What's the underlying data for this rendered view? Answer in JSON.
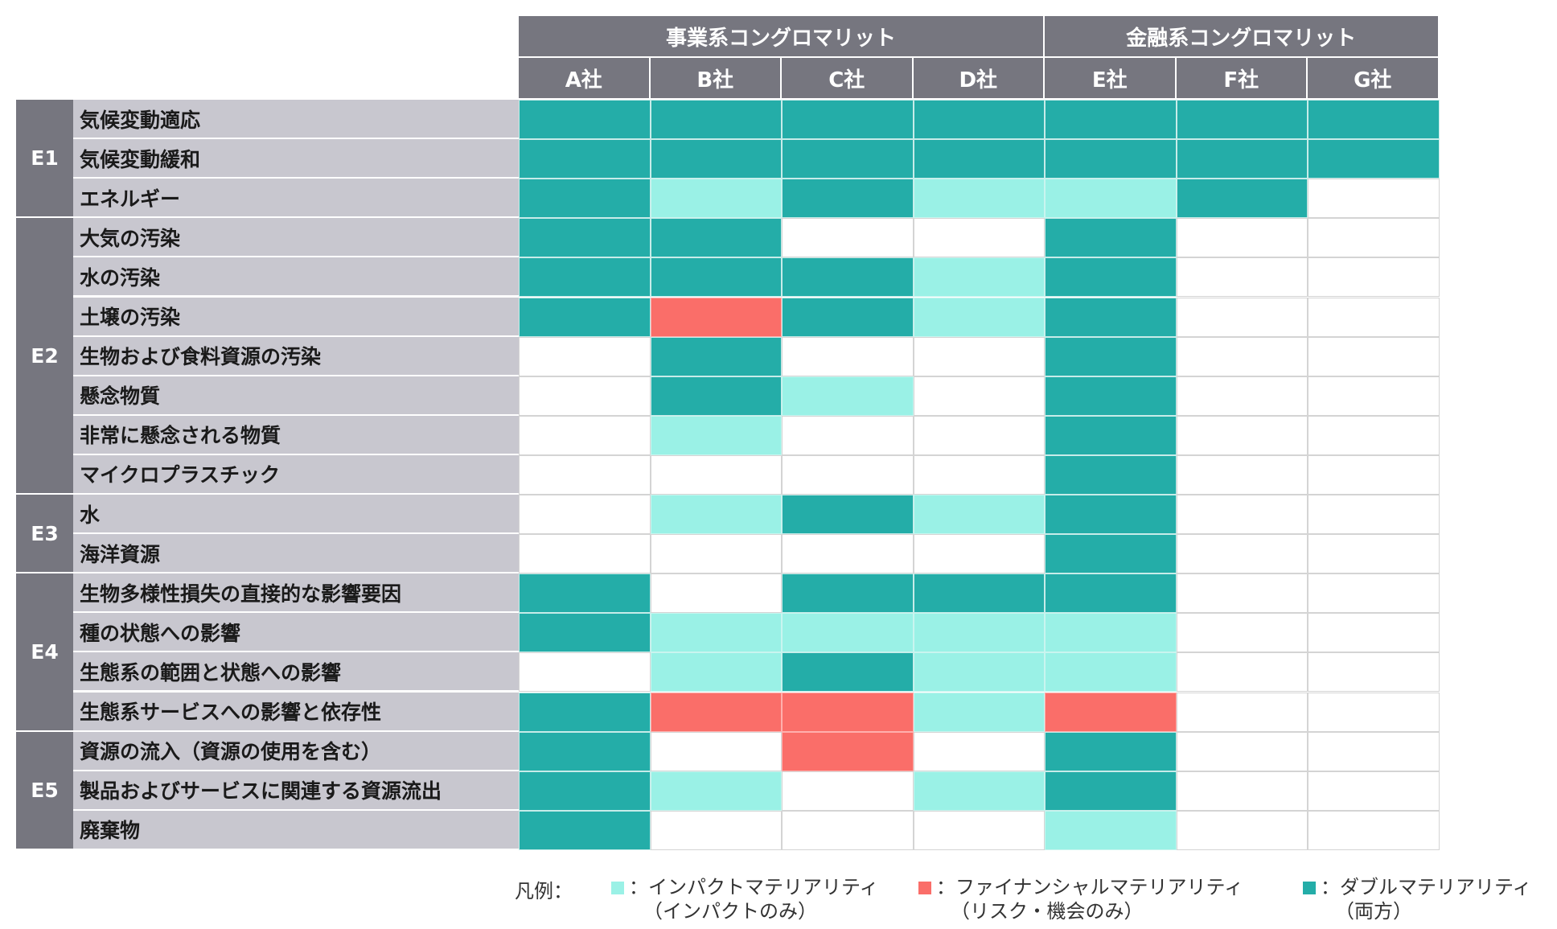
{
  "chart_data": {
    "type": "table",
    "column_groups": [
      {
        "label": "事業系コングロマリット",
        "span": 4
      },
      {
        "label": "金融系コングロマリット",
        "span": 3
      }
    ],
    "columns": [
      "A社",
      "B社",
      "C社",
      "D社",
      "E社",
      "F社",
      "G社"
    ],
    "row_groups": [
      {
        "label": "E1",
        "rows": [
          {
            "label": "気候変動適応",
            "values": [
              3,
              3,
              3,
              3,
              3,
              3,
              3
            ]
          },
          {
            "label": "気候変動緩和",
            "values": [
              3,
              3,
              3,
              3,
              3,
              3,
              3
            ]
          },
          {
            "label": "エネルギー",
            "values": [
              3,
              1,
              3,
              1,
              1,
              3,
              0
            ]
          }
        ]
      },
      {
        "label": "E2",
        "rows": [
          {
            "label": "大気の汚染",
            "values": [
              3,
              3,
              0,
              0,
              3,
              0,
              0
            ]
          },
          {
            "label": "水の汚染",
            "values": [
              3,
              3,
              3,
              1,
              3,
              0,
              0
            ]
          },
          {
            "label": "土壌の汚染",
            "values": [
              3,
              2,
              3,
              1,
              3,
              0,
              0
            ]
          },
          {
            "label": "生物および食料資源の汚染",
            "values": [
              0,
              3,
              0,
              0,
              3,
              0,
              0
            ]
          },
          {
            "label": "懸念物質",
            "values": [
              0,
              3,
              1,
              0,
              3,
              0,
              0
            ]
          },
          {
            "label": "非常に懸念される物質",
            "values": [
              0,
              1,
              0,
              0,
              3,
              0,
              0
            ]
          },
          {
            "label": "マイクロプラスチック",
            "values": [
              0,
              0,
              0,
              0,
              3,
              0,
              0
            ]
          }
        ]
      },
      {
        "label": "E3",
        "rows": [
          {
            "label": "水",
            "values": [
              0,
              1,
              3,
              1,
              3,
              0,
              0
            ]
          },
          {
            "label": "海洋資源",
            "values": [
              0,
              0,
              0,
              0,
              3,
              0,
              0
            ]
          }
        ]
      },
      {
        "label": "E4",
        "rows": [
          {
            "label": "生物多様性損失の直接的な影響要因",
            "values": [
              3,
              0,
              3,
              3,
              3,
              0,
              0
            ]
          },
          {
            "label": "種の状態への影響",
            "values": [
              3,
              1,
              1,
              1,
              1,
              0,
              0
            ]
          },
          {
            "label": "生態系の範囲と状態への影響",
            "values": [
              0,
              1,
              3,
              1,
              1,
              0,
              0
            ]
          },
          {
            "label": "生態系サービスへの影響と依存性",
            "values": [
              3,
              2,
              2,
              1,
              2,
              0,
              0
            ]
          }
        ]
      },
      {
        "label": "E5",
        "rows": [
          {
            "label": "資源の流入（資源の使用を含む）",
            "values": [
              3,
              0,
              2,
              0,
              3,
              0,
              0
            ]
          },
          {
            "label": "製品およびサービスに関連する資源流出",
            "values": [
              3,
              1,
              0,
              1,
              3,
              0,
              0
            ]
          },
          {
            "label": "廃棄物",
            "values": [
              3,
              0,
              0,
              0,
              1,
              0,
              0
            ]
          }
        ]
      }
    ],
    "categories": {
      "0": "",
      "1": "インパクトマテリアリティ（インパクトのみ）",
      "2": "ファイナンシャルマテリアリティ（リスク・機会のみ）",
      "3": "ダブルマテリアリティ（両方）"
    }
  },
  "colors": {
    "header": "#76767f",
    "row_label": "#c8c7cf",
    "none": "#ffffff",
    "impact": "#9af1e6",
    "financial": "#fa6e69",
    "double": "#24ada8"
  },
  "legend": {
    "lead": "凡例：",
    "items": [
      {
        "color": "#9af1e6",
        "line1": "：インパクトマテリアリティ",
        "line2": "（インパクトのみ）"
      },
      {
        "color": "#fa6e69",
        "line1": "：ファイナンシャルマテリアリティ",
        "line2": "（リスク・機会のみ）"
      },
      {
        "color": "#24ada8",
        "line1": "：ダブルマテリアリティ",
        "line2": "（両方）"
      }
    ]
  }
}
